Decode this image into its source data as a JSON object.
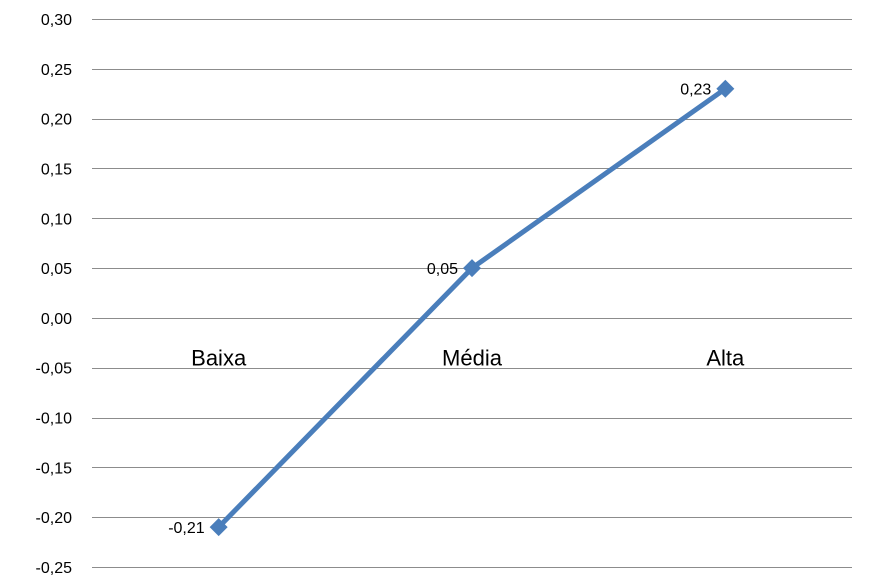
{
  "chart_data": {
    "type": "line",
    "categories": [
      "Baixa",
      "Média",
      "Alta"
    ],
    "series": [
      {
        "values": [
          -0.21,
          0.05,
          0.23
        ],
        "data_labels": [
          "-0,21",
          "0,05",
          "0,23"
        ]
      }
    ],
    "ylim": [
      -0.25,
      0.3
    ],
    "ytick_values": [
      0.3,
      0.25,
      0.2,
      0.15,
      0.1,
      0.05,
      0.0,
      -0.05,
      -0.1,
      -0.15,
      -0.2,
      -0.25
    ],
    "yticks": [
      "0,30",
      "0,25",
      "0,20",
      "0,15",
      "0,10",
      "0,05",
      "0,00",
      "-0,05",
      "-0,10",
      "-0,15",
      "-0,20",
      "-0,25"
    ],
    "category_label_y": -0.05,
    "grid": true,
    "marker": "diamond",
    "colors": {
      "line": "#4a7ebb",
      "grid": "#8c8c8c"
    }
  }
}
